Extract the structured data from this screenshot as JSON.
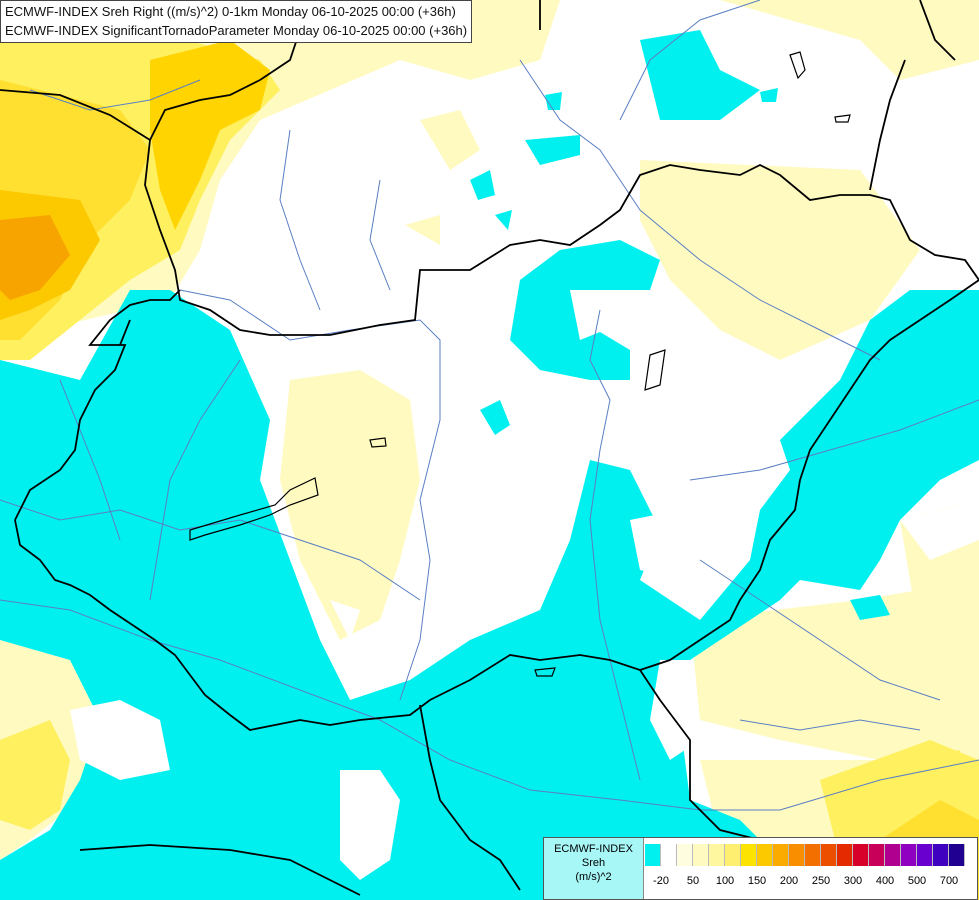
{
  "header": {
    "line1": "ECMWF-INDEX Sreh Right ((m/s)^2) 0-1km Monday 06-10-2025 00:00 (+36h)",
    "line2": "ECMWF-INDEX SignificantTornadoParameter Monday 06-10-2025 00:00 (+36h)"
  },
  "legend": {
    "title": "ECMWF-INDEX",
    "variable": "Sreh",
    "unit": "(m/s)^2",
    "colors": [
      "#00f0f0",
      "#ffffff",
      "#fffde0",
      "#fffac0",
      "#fff7a0",
      "#ffef70",
      "#fde300",
      "#fcc800",
      "#fbab00",
      "#f98f00",
      "#f37000",
      "#ed4f00",
      "#e42a00",
      "#d6002a",
      "#c8005a",
      "#b00090",
      "#9000c0",
      "#6a00d0",
      "#4000c0",
      "#200090"
    ],
    "ticks": [
      "-20",
      "50",
      "100",
      "150",
      "200",
      "250",
      "300",
      "400",
      "500",
      "700"
    ]
  },
  "colors": {
    "cyan": "#00f0f0",
    "pale_yellow": "#fffac0",
    "yellow": "#fff060",
    "gold": "#ffd400",
    "orange": "#f8a400",
    "border": "#000000",
    "river": "#5a7fc4"
  }
}
